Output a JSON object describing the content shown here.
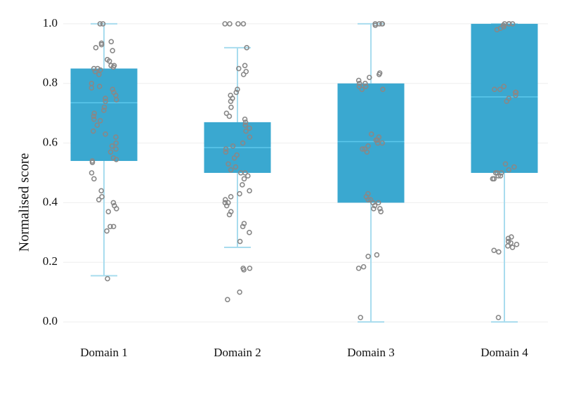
{
  "chart_data": {
    "type": "box",
    "y_label": "Normalised score",
    "categories": [
      "Domain 1",
      "Domain 2",
      "Domain 3",
      "Domain 4"
    ],
    "ylim": [
      -0.028,
      1.028
    ],
    "yticks": [
      {
        "value": 0,
        "label": "0.0"
      },
      0.2,
      0.4,
      0.6,
      0.8,
      {
        "value": 1,
        "label": "1.0"
      }
    ],
    "grid": true,
    "box_color": "#3aa8d0",
    "whisker_color": "#a8dcee",
    "median_color": "#5cc8ec",
    "point_color": "#888888",
    "boxes": [
      {
        "low": 0.155,
        "q1": 0.54,
        "median": 0.735,
        "q3": 0.85,
        "high": 1.0,
        "points": [
          1.0,
          1.0,
          0.935,
          0.93,
          0.92,
          0.91,
          0.94,
          0.88,
          0.875,
          0.86,
          0.86,
          0.855,
          0.85,
          0.85,
          0.845,
          0.84,
          0.83,
          0.8,
          0.79,
          0.785,
          0.78,
          0.77,
          0.76,
          0.75,
          0.745,
          0.74,
          0.72,
          0.71,
          0.7,
          0.69,
          0.68,
          0.675,
          0.66,
          0.64,
          0.63,
          0.62,
          0.6,
          0.59,
          0.58,
          0.57,
          0.55,
          0.545,
          0.54,
          0.535,
          0.5,
          0.48,
          0.44,
          0.42,
          0.41,
          0.4,
          0.39,
          0.38,
          0.37,
          0.32,
          0.32,
          0.305,
          0.145
        ]
      },
      {
        "low": 0.25,
        "q1": 0.5,
        "median": 0.585,
        "q3": 0.67,
        "high": 0.92,
        "points": [
          1.0,
          1.0,
          1.0,
          1.0,
          0.92,
          0.86,
          0.85,
          0.84,
          0.83,
          0.78,
          0.77,
          0.76,
          0.75,
          0.74,
          0.72,
          0.7,
          0.69,
          0.68,
          0.67,
          0.66,
          0.65,
          0.64,
          0.62,
          0.6,
          0.59,
          0.58,
          0.57,
          0.56,
          0.55,
          0.53,
          0.52,
          0.51,
          0.5,
          0.5,
          0.49,
          0.48,
          0.46,
          0.44,
          0.43,
          0.42,
          0.41,
          0.4,
          0.4,
          0.39,
          0.37,
          0.36,
          0.33,
          0.32,
          0.3,
          0.27,
          0.18,
          0.175,
          0.18,
          0.1,
          0.075
        ]
      },
      {
        "low": 0.0,
        "q1": 0.4,
        "median": 0.605,
        "q3": 0.8,
        "high": 1.0,
        "points": [
          1.0,
          1.0,
          1.0,
          1.0,
          0.995,
          0.835,
          0.83,
          0.82,
          0.81,
          0.8,
          0.8,
          0.79,
          0.79,
          0.78,
          0.78,
          0.63,
          0.62,
          0.61,
          0.61,
          0.6,
          0.6,
          0.59,
          0.58,
          0.58,
          0.57,
          0.43,
          0.42,
          0.41,
          0.41,
          0.4,
          0.4,
          0.39,
          0.38,
          0.38,
          0.37,
          0.225,
          0.22,
          0.185,
          0.18,
          0.015
        ]
      },
      {
        "low": 0.0,
        "q1": 0.5,
        "median": 0.755,
        "q3": 1.0,
        "high": 1.0,
        "points": [
          1.0,
          1.0,
          1.0,
          1.0,
          0.995,
          0.99,
          0.985,
          0.98,
          0.79,
          0.78,
          0.78,
          0.77,
          0.77,
          0.76,
          0.75,
          0.74,
          0.53,
          0.52,
          0.51,
          0.5,
          0.5,
          0.5,
          0.49,
          0.49,
          0.48,
          0.48,
          0.285,
          0.28,
          0.27,
          0.265,
          0.26,
          0.255,
          0.25,
          0.24,
          0.235,
          0.015
        ]
      }
    ]
  }
}
